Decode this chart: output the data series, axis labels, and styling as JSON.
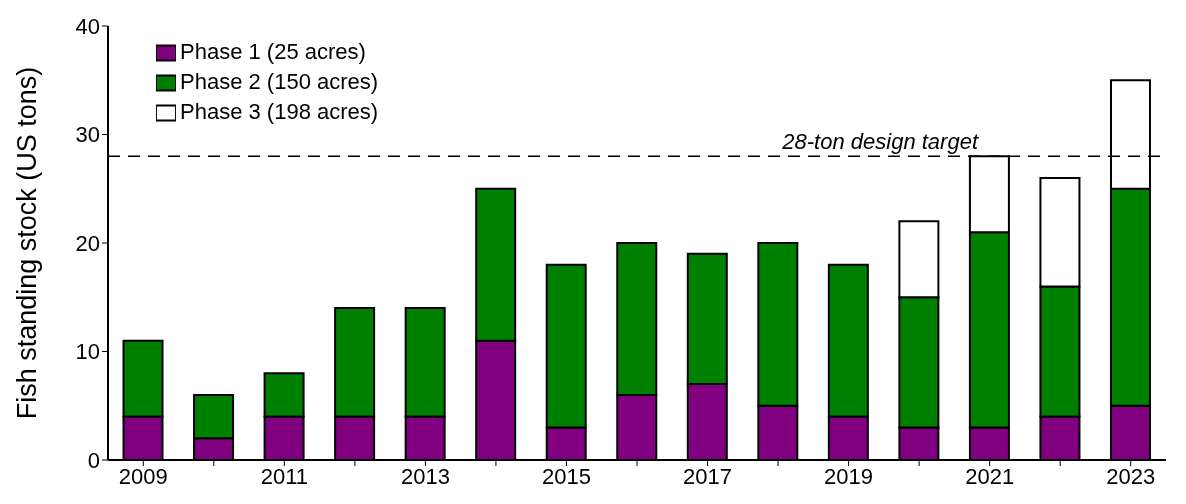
{
  "chart_data": {
    "type": "bar",
    "stacked": true,
    "ylabel": "Fish standing stock (US tons)",
    "categories": [
      "2009",
      null,
      "2011",
      null,
      "2013",
      null,
      "2015",
      null,
      "2017",
      null,
      "2019",
      null,
      "2021",
      null,
      "2023"
    ],
    "series": [
      {
        "name": "Phase 1 (25 acres)",
        "color": "#800080",
        "values": [
          4,
          2,
          4,
          4,
          4,
          11,
          3,
          6,
          7,
          5,
          4,
          3,
          3,
          4,
          5
        ]
      },
      {
        "name": "Phase 2 (150 acres)",
        "color": "#008000",
        "values": [
          7,
          4,
          4,
          10,
          10,
          14,
          15,
          14,
          12,
          15,
          14,
          12,
          18,
          12,
          20
        ]
      },
      {
        "name": "Phase 3 (198 acres)",
        "color": "#ffffff",
        "values": [
          null,
          null,
          null,
          null,
          null,
          null,
          null,
          null,
          null,
          null,
          null,
          7,
          7,
          10,
          10
        ]
      }
    ],
    "ylim": [
      0,
      40
    ],
    "yticks": [
      0,
      10,
      20,
      30,
      40
    ],
    "grid": false,
    "legend": "top left",
    "ref_lines": [
      {
        "axis": "y",
        "value": 28,
        "label": "28-ton design target",
        "line_style": "dashed",
        "color": "#000000"
      }
    ]
  }
}
